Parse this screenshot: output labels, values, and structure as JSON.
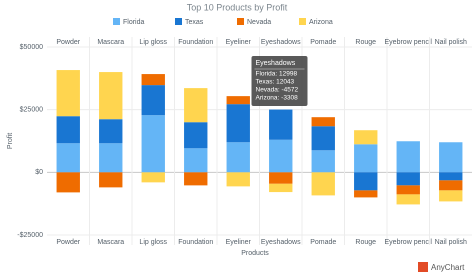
{
  "chart_data": {
    "type": "stacked_bar",
    "title": "Top 10 Products by Profit",
    "x_label": "Products",
    "y_label": "Profit",
    "categories": [
      "Powder",
      "Mascara",
      "Lip gloss",
      "Foundation",
      "Eyeliner",
      "Eyeshadows",
      "Pomade",
      "Rouge",
      "Eyebrow pencil",
      "Nail polish"
    ],
    "series": [
      {
        "name": "Florida",
        "color": "#64b5f6",
        "values": [
          11600,
          11600,
          22800,
          9600,
          12000,
          12998,
          8800,
          11200,
          12400,
          12000
        ]
      },
      {
        "name": "Texas",
        "color": "#1976d2",
        "values": [
          10800,
          9600,
          12000,
          10400,
          15200,
          12043,
          9600,
          -7200,
          -5200,
          -3200
        ]
      },
      {
        "name": "Nevada",
        "color": "#ef6c00",
        "values": [
          -8000,
          -6000,
          4400,
          -5200,
          3200,
          -4572,
          3600,
          -2800,
          -3600,
          -4000
        ]
      },
      {
        "name": "Arizona",
        "color": "#ffd54f",
        "values": [
          18400,
          18800,
          -4000,
          13600,
          -5600,
          -3308,
          -9200,
          5600,
          -4000,
          -4400
        ]
      }
    ],
    "ylim": [
      -25000,
      50000
    ],
    "yticks": [
      {
        "value": 50000,
        "label": "$50000"
      },
      {
        "value": 25000,
        "label": "$25000"
      },
      {
        "value": 0,
        "label": "$0"
      },
      {
        "value": -25000,
        "label": "-$25000"
      }
    ],
    "grid": true,
    "tooltip": {
      "title": "Eyeshadows",
      "lines": [
        "Florida: 12998",
        "Texas: 12043",
        "Nevada: -4572",
        "Arizona: -3308"
      ]
    },
    "credits": "AnyChart"
  }
}
